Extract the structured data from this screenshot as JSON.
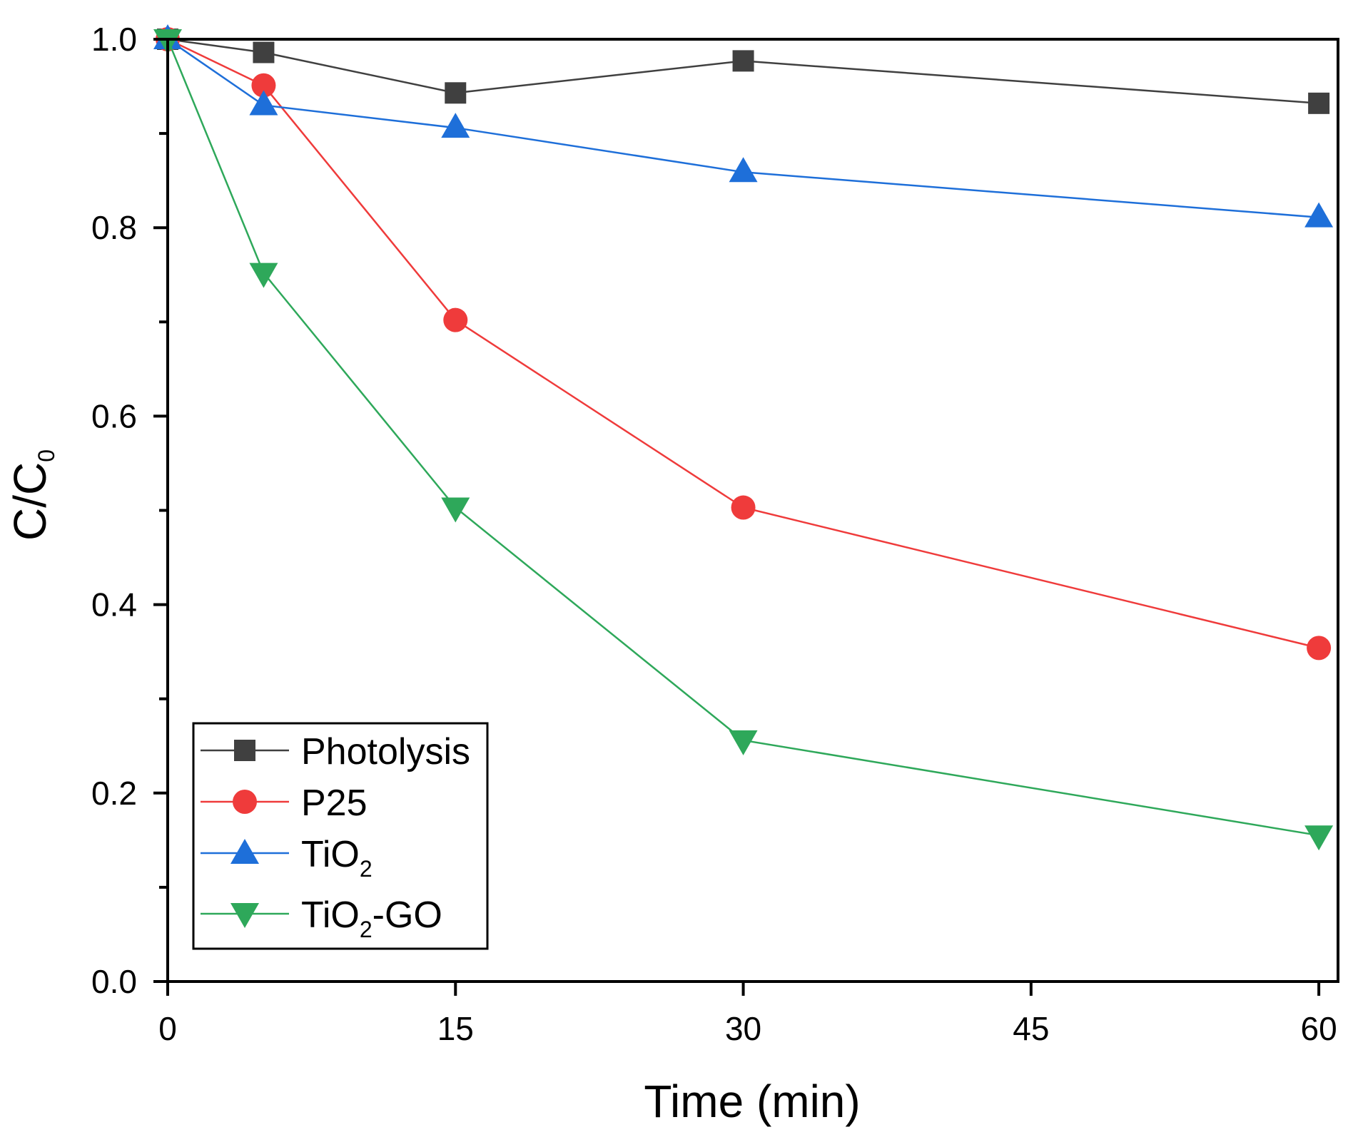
{
  "chart_data": {
    "type": "line",
    "title": "",
    "xlabel": "Time (min)",
    "ylabel": {
      "main": "C/C",
      "sub": "0"
    },
    "xlim": [
      0,
      61
    ],
    "ylim": [
      0,
      1.0
    ],
    "x_ticks": [
      0,
      15,
      30,
      45,
      60
    ],
    "x_tick_labels": [
      "0",
      "15",
      "30",
      "45",
      "60"
    ],
    "y_ticks": [
      0.0,
      0.2,
      0.4,
      0.6,
      0.8,
      1.0
    ],
    "y_tick_labels": [
      "0.0",
      "0.2",
      "0.4",
      "0.6",
      "0.8",
      "1.0"
    ],
    "y_minor_ticks": [
      0.1,
      0.3,
      0.5,
      0.7,
      0.9
    ],
    "grid": false,
    "legend_position": "bottom-left",
    "x": [
      0,
      5,
      15,
      30,
      60
    ],
    "series": [
      {
        "name": "Photolysis",
        "label_main": "Photolysis",
        "label_sub": "",
        "label_suffix": "",
        "color": "#404040",
        "marker": "square",
        "values": [
          1.0,
          0.986,
          0.943,
          0.977,
          0.932
        ]
      },
      {
        "name": "P25",
        "label_main": "P25",
        "label_sub": "",
        "label_suffix": "",
        "color": "#ef3b3b",
        "marker": "circle",
        "values": [
          1.0,
          0.951,
          0.702,
          0.503,
          0.354
        ]
      },
      {
        "name": "TiO2",
        "label_main": "TiO",
        "label_sub": "2",
        "label_suffix": "",
        "color": "#1e6fd9",
        "marker": "triangle-up",
        "values": [
          1.0,
          0.93,
          0.906,
          0.859,
          0.811
        ]
      },
      {
        "name": "TiO2-GO",
        "label_main": "TiO",
        "label_sub": "2",
        "label_suffix": "-GO",
        "color": "#2ea85a",
        "marker": "triangle-down",
        "values": [
          1.0,
          0.752,
          0.503,
          0.256,
          0.155
        ]
      }
    ]
  }
}
